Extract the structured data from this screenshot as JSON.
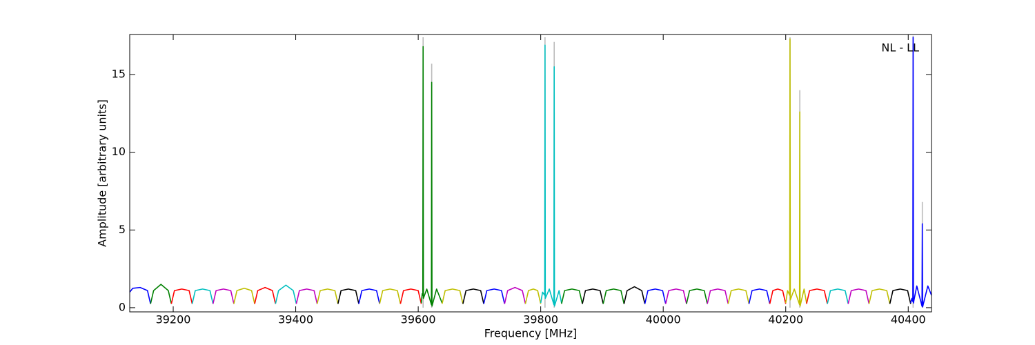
{
  "chart_data": {
    "type": "line",
    "annotation": "NL - LL",
    "x_label": "Frequency [MHz]",
    "y_label": "Amplitude [arbitrary units]",
    "xlim": [
      39129,
      40438
    ],
    "ylim": [
      -0.27,
      17.58
    ],
    "xticks": [
      39200,
      39400,
      39600,
      39800,
      40000,
      40200,
      40400
    ],
    "yticks": [
      0,
      5,
      10,
      15
    ],
    "grid": false,
    "series": [
      {
        "color": "#bbbbbb",
        "x": [
          39608,
          39608,
          39608,
          39622,
          39622,
          39622,
          39807,
          39807,
          39807,
          39822,
          39822,
          39822,
          40207,
          40207,
          40207,
          40223,
          40223,
          40223,
          40408,
          40408,
          40408,
          40423,
          40423
        ],
        "values": [
          0,
          17.4,
          null,
          0,
          15.7,
          null,
          0,
          17.4,
          null,
          0,
          17.1,
          null,
          0,
          17.4,
          null,
          0,
          14.0,
          null,
          0,
          17.5,
          null,
          0,
          6.8
        ]
      },
      {
        "color": "#0000ff",
        "x": [
          39129,
          39134,
          39146,
          39158,
          39163
        ],
        "values": [
          1.0,
          1.25,
          1.3,
          1.1,
          0.25
        ]
      },
      {
        "color": "#008000",
        "x": [
          39163,
          39168,
          39180,
          39192,
          39197
        ],
        "values": [
          0.25,
          1.1,
          1.5,
          1.1,
          0.25
        ]
      },
      {
        "color": "#ff0000",
        "x": [
          39197,
          39202,
          39214,
          39226,
          39231
        ],
        "values": [
          0.25,
          1.1,
          1.2,
          1.1,
          0.25
        ]
      },
      {
        "color": "#00bfbf",
        "x": [
          39231,
          39236,
          39248,
          39260,
          39265
        ],
        "values": [
          0.25,
          1.1,
          1.2,
          1.1,
          0.25
        ]
      },
      {
        "color": "#bf00bf",
        "x": [
          39265,
          39270,
          39282,
          39294,
          39299
        ],
        "values": [
          0.25,
          1.1,
          1.2,
          1.1,
          0.25
        ]
      },
      {
        "color": "#bfbf00",
        "x": [
          39299,
          39304,
          39316,
          39328,
          39333
        ],
        "values": [
          0.25,
          1.1,
          1.25,
          1.1,
          0.25
        ]
      },
      {
        "color": "#ff0000",
        "x": [
          39333,
          39338,
          39350,
          39362,
          39367
        ],
        "values": [
          0.25,
          1.1,
          1.3,
          1.1,
          0.25
        ]
      },
      {
        "color": "#00bfbf",
        "x": [
          39367,
          39372,
          39384,
          39396,
          39401
        ],
        "values": [
          0.25,
          1.1,
          1.45,
          1.1,
          0.25
        ]
      },
      {
        "color": "#bf00bf",
        "x": [
          39401,
          39406,
          39418,
          39430,
          39435
        ],
        "values": [
          0.25,
          1.1,
          1.2,
          1.1,
          0.25
        ]
      },
      {
        "color": "#bfbf00",
        "x": [
          39435,
          39440,
          39452,
          39464,
          39469
        ],
        "values": [
          0.25,
          1.1,
          1.2,
          1.1,
          0.25
        ]
      },
      {
        "color": "#000000",
        "x": [
          39469,
          39474,
          39486,
          39498,
          39503
        ],
        "values": [
          0.25,
          1.1,
          1.2,
          1.1,
          0.25
        ]
      },
      {
        "color": "#0000ff",
        "x": [
          39503,
          39508,
          39520,
          39532,
          39537
        ],
        "values": [
          0.25,
          1.1,
          1.2,
          1.1,
          0.25
        ]
      },
      {
        "color": "#bfbf00",
        "x": [
          39537,
          39542,
          39554,
          39566,
          39571
        ],
        "values": [
          0.25,
          1.1,
          1.2,
          1.1,
          0.25
        ]
      },
      {
        "color": "#ff0000",
        "x": [
          39571,
          39576,
          39588,
          39600,
          39605
        ],
        "values": [
          0.25,
          1.1,
          1.2,
          1.1,
          0.25
        ]
      },
      {
        "color": "#008000",
        "x": [
          39605,
          39606.5,
          39607.5,
          39608,
          39608.5,
          39614,
          39621.5,
          39622,
          39622.5,
          39630,
          39639
        ],
        "values": [
          0.3,
          0.9,
          0.8,
          16.8,
          0.6,
          1.2,
          0.2,
          14.5,
          0.1,
          1.2,
          0.3
        ]
      },
      {
        "color": "#bfbf00",
        "x": [
          39639,
          39644,
          39656,
          39668,
          39673
        ],
        "values": [
          0.25,
          1.1,
          1.2,
          1.1,
          0.25
        ]
      },
      {
        "color": "#000000",
        "x": [
          39673,
          39678,
          39690,
          39702,
          39707
        ],
        "values": [
          0.25,
          1.1,
          1.2,
          1.1,
          0.25
        ]
      },
      {
        "color": "#0000ff",
        "x": [
          39707,
          39712,
          39724,
          39736,
          39741
        ],
        "values": [
          0.25,
          1.1,
          1.2,
          1.1,
          0.25
        ]
      },
      {
        "color": "#bf00bf",
        "x": [
          39741,
          39746,
          39758,
          39770,
          39775
        ],
        "values": [
          0.25,
          1.1,
          1.3,
          1.1,
          0.25
        ]
      },
      {
        "color": "#bfbf00",
        "x": [
          39775,
          39780,
          39788,
          39795,
          39800
        ],
        "values": [
          0.25,
          1.1,
          1.2,
          1.1,
          0.25
        ]
      },
      {
        "color": "#00bfbf",
        "x": [
          39800,
          39803,
          39806.5,
          39807,
          39807.5,
          39814,
          39821.5,
          39822,
          39822.5,
          39830,
          39834
        ],
        "values": [
          0.3,
          1.0,
          0.8,
          16.9,
          0.6,
          1.2,
          0.2,
          15.5,
          0.1,
          1.1,
          0.3
        ]
      },
      {
        "color": "#008000",
        "x": [
          39834,
          39839,
          39851,
          39863,
          39868
        ],
        "values": [
          0.25,
          1.1,
          1.2,
          1.1,
          0.25
        ]
      },
      {
        "color": "#000000",
        "x": [
          39868,
          39873,
          39885,
          39897,
          39902
        ],
        "values": [
          0.25,
          1.1,
          1.2,
          1.1,
          0.25
        ]
      },
      {
        "color": "#008000",
        "x": [
          39902,
          39907,
          39919,
          39931,
          39936
        ],
        "values": [
          0.25,
          1.1,
          1.2,
          1.1,
          0.25
        ]
      },
      {
        "color": "#000000",
        "x": [
          39936,
          39941,
          39953,
          39965,
          39970
        ],
        "values": [
          0.25,
          1.1,
          1.35,
          1.1,
          0.25
        ]
      },
      {
        "color": "#0000ff",
        "x": [
          39970,
          39975,
          39987,
          39999,
          40004
        ],
        "values": [
          0.25,
          1.1,
          1.2,
          1.1,
          0.25
        ]
      },
      {
        "color": "#bf00bf",
        "x": [
          40004,
          40009,
          40021,
          40033,
          40038
        ],
        "values": [
          0.25,
          1.1,
          1.2,
          1.1,
          0.25
        ]
      },
      {
        "color": "#008000",
        "x": [
          40038,
          40043,
          40055,
          40067,
          40072
        ],
        "values": [
          0.25,
          1.1,
          1.2,
          1.1,
          0.25
        ]
      },
      {
        "color": "#bf00bf",
        "x": [
          40072,
          40077,
          40089,
          40101,
          40106
        ],
        "values": [
          0.25,
          1.1,
          1.2,
          1.1,
          0.25
        ]
      },
      {
        "color": "#bfbf00",
        "x": [
          40106,
          40111,
          40123,
          40135,
          40140
        ],
        "values": [
          0.25,
          1.1,
          1.2,
          1.1,
          0.25
        ]
      },
      {
        "color": "#0000ff",
        "x": [
          40140,
          40145,
          40157,
          40169,
          40174
        ],
        "values": [
          0.25,
          1.1,
          1.2,
          1.1,
          0.25
        ]
      },
      {
        "color": "#ff0000",
        "x": [
          40174,
          40179,
          40187,
          40195,
          40200
        ],
        "values": [
          0.25,
          1.1,
          1.2,
          1.1,
          0.25
        ]
      },
      {
        "color": "#bfbf00",
        "x": [
          40200,
          40203,
          40206.5,
          40207,
          40207.5,
          40214,
          40222.5,
          40223,
          40223.5,
          40230,
          40234
        ],
        "values": [
          0.3,
          1.1,
          0.8,
          17.3,
          0.5,
          1.2,
          0.2,
          12.6,
          0.1,
          1.2,
          0.3
        ]
      },
      {
        "color": "#ff0000",
        "x": [
          40234,
          40239,
          40251,
          40263,
          40268
        ],
        "values": [
          0.25,
          1.1,
          1.2,
          1.1,
          0.25
        ]
      },
      {
        "color": "#00bfbf",
        "x": [
          40268,
          40273,
          40285,
          40297,
          40302
        ],
        "values": [
          0.25,
          1.1,
          1.2,
          1.1,
          0.25
        ]
      },
      {
        "color": "#bf00bf",
        "x": [
          40302,
          40307,
          40319,
          40331,
          40336
        ],
        "values": [
          0.25,
          1.1,
          1.2,
          1.1,
          0.25
        ]
      },
      {
        "color": "#bfbf00",
        "x": [
          40336,
          40341,
          40353,
          40365,
          40370
        ],
        "values": [
          0.25,
          1.1,
          1.2,
          1.1,
          0.25
        ]
      },
      {
        "color": "#000000",
        "x": [
          40370,
          40375,
          40387,
          40399,
          40404
        ],
        "values": [
          0.25,
          1.1,
          1.2,
          1.1,
          0.25
        ]
      },
      {
        "color": "#0000ff",
        "x": [
          40404,
          40406,
          40407.5,
          40408,
          40408.5,
          40414,
          40422.5,
          40423,
          40423.5,
          40432,
          40438
        ],
        "values": [
          0.3,
          0.6,
          0.4,
          17.4,
          0.3,
          1.4,
          0.1,
          5.4,
          0.05,
          1.4,
          0.8
        ]
      }
    ]
  }
}
